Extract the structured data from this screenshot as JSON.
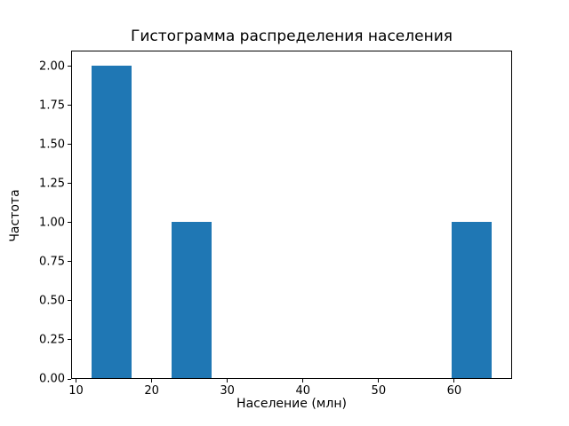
{
  "chart_data": {
    "type": "histogram",
    "title": "Гистограмма распределения населения",
    "xlabel": "Население (млн)",
    "ylabel": "Частота",
    "xlim": [
      9.35,
      67.65
    ],
    "ylim": [
      0,
      2.1
    ],
    "x_ticks": [
      10,
      20,
      30,
      40,
      50,
      60
    ],
    "x_tick_labels": [
      "10",
      "20",
      "30",
      "40",
      "50",
      "60"
    ],
    "y_ticks": [
      0.0,
      0.25,
      0.5,
      0.75,
      1.0,
      1.25,
      1.5,
      1.75,
      2.0
    ],
    "y_tick_labels": [
      "0.00",
      "0.25",
      "0.50",
      "0.75",
      "1.00",
      "1.25",
      "1.50",
      "1.75",
      "2.00"
    ],
    "bar_color": "#1f77b4",
    "bins": [
      {
        "start": 12.0,
        "end": 17.3,
        "count": 2
      },
      {
        "start": 22.6,
        "end": 27.9,
        "count": 1
      },
      {
        "start": 59.7,
        "end": 65.0,
        "count": 1
      }
    ],
    "grid": false,
    "legend": "none"
  }
}
